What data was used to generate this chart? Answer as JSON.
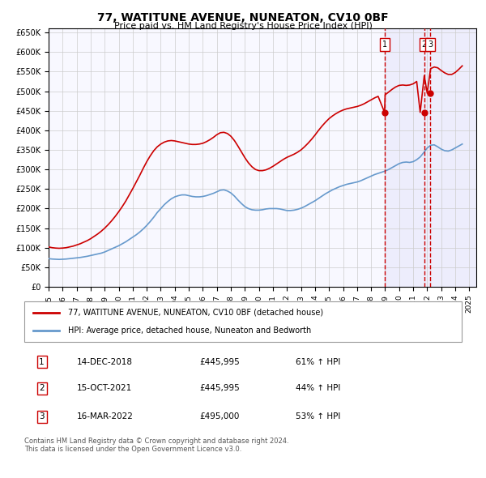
{
  "title": "77, WATITUNE AVENUE, NUNEATON, CV10 0BF",
  "subtitle": "Price paid vs. HM Land Registry's House Price Index (HPI)",
  "ylabel": "",
  "xlim_start": 1995.0,
  "xlim_end": 2025.5,
  "ylim_min": 0,
  "ylim_max": 650000,
  "yticks": [
    0,
    50000,
    100000,
    150000,
    200000,
    250000,
    300000,
    350000,
    400000,
    450000,
    500000,
    550000,
    600000,
    650000
  ],
  "ytick_labels": [
    "£0",
    "£50K",
    "£100K",
    "£150K",
    "£200K",
    "£250K",
    "£300K",
    "£350K",
    "£400K",
    "£450K",
    "£500K",
    "£550K",
    "£600K",
    "£650K"
  ],
  "hpi_color": "#6699cc",
  "price_color": "#cc0000",
  "sale_marker_color": "#cc0000",
  "vline_color": "#cc0000",
  "hatch_color": "#ddddff",
  "background_color": "#ffffff",
  "grid_color": "#cccccc",
  "legend_line1": "77, WATITUNE AVENUE, NUNEATON, CV10 0BF (detached house)",
  "legend_line2": "HPI: Average price, detached house, Nuneaton and Bedworth",
  "sale1_date": "14-DEC-2018",
  "sale1_price": "£445,995",
  "sale1_hpi": "61% ↑ HPI",
  "sale1_year": 2018.96,
  "sale1_value": 445995,
  "sale2_date": "15-OCT-2021",
  "sale2_price": "£445,995",
  "sale2_hpi": "44% ↑ HPI",
  "sale2_year": 2021.79,
  "sale2_value": 445995,
  "sale3_date": "16-MAR-2022",
  "sale3_price": "£495,000",
  "sale3_hpi": "53% ↑ HPI",
  "sale3_year": 2022.21,
  "sale3_value": 495000,
  "footer_text": "Contains HM Land Registry data © Crown copyright and database right 2024.\nThis data is licensed under the Open Government Licence v3.0.",
  "hpi_years": [
    1995.0,
    1995.25,
    1995.5,
    1995.75,
    1996.0,
    1996.25,
    1996.5,
    1996.75,
    1997.0,
    1997.25,
    1997.5,
    1997.75,
    1998.0,
    1998.25,
    1998.5,
    1998.75,
    1999.0,
    1999.25,
    1999.5,
    1999.75,
    2000.0,
    2000.25,
    2000.5,
    2000.75,
    2001.0,
    2001.25,
    2001.5,
    2001.75,
    2002.0,
    2002.25,
    2002.5,
    2002.75,
    2003.0,
    2003.25,
    2003.5,
    2003.75,
    2004.0,
    2004.25,
    2004.5,
    2004.75,
    2005.0,
    2005.25,
    2005.5,
    2005.75,
    2006.0,
    2006.25,
    2006.5,
    2006.75,
    2007.0,
    2007.25,
    2007.5,
    2007.75,
    2008.0,
    2008.25,
    2008.5,
    2008.75,
    2009.0,
    2009.25,
    2009.5,
    2009.75,
    2010.0,
    2010.25,
    2010.5,
    2010.75,
    2011.0,
    2011.25,
    2011.5,
    2011.75,
    2012.0,
    2012.25,
    2012.5,
    2012.75,
    2013.0,
    2013.25,
    2013.5,
    2013.75,
    2014.0,
    2014.25,
    2014.5,
    2014.75,
    2015.0,
    2015.25,
    2015.5,
    2015.75,
    2016.0,
    2016.25,
    2016.5,
    2016.75,
    2017.0,
    2017.25,
    2017.5,
    2017.75,
    2018.0,
    2018.25,
    2018.5,
    2018.75,
    2019.0,
    2019.25,
    2019.5,
    2019.75,
    2020.0,
    2020.25,
    2020.5,
    2020.75,
    2021.0,
    2021.25,
    2021.5,
    2021.75,
    2022.0,
    2022.25,
    2022.5,
    2022.75,
    2023.0,
    2023.25,
    2023.5,
    2023.75,
    2024.0,
    2024.25,
    2024.5
  ],
  "hpi_values": [
    72000,
    71000,
    70500,
    70000,
    70500,
    71000,
    72000,
    73000,
    74000,
    75000,
    76500,
    78000,
    80000,
    82000,
    84000,
    86000,
    89000,
    93000,
    97000,
    101000,
    105000,
    110000,
    115000,
    121000,
    127000,
    133000,
    140000,
    148000,
    157000,
    167000,
    178000,
    190000,
    200000,
    210000,
    218000,
    225000,
    230000,
    233000,
    235000,
    235000,
    233000,
    231000,
    230000,
    230000,
    231000,
    233000,
    236000,
    239000,
    243000,
    247000,
    248000,
    245000,
    240000,
    232000,
    222000,
    213000,
    205000,
    200000,
    197000,
    196000,
    196000,
    197000,
    199000,
    200000,
    200000,
    200000,
    199000,
    197000,
    195000,
    195000,
    196000,
    198000,
    201000,
    205000,
    210000,
    215000,
    220000,
    226000,
    232000,
    238000,
    243000,
    248000,
    252000,
    256000,
    259000,
    262000,
    264000,
    266000,
    268000,
    271000,
    275000,
    279000,
    283000,
    287000,
    290000,
    293000,
    296000,
    300000,
    305000,
    310000,
    315000,
    318000,
    319000,
    318000,
    320000,
    325000,
    332000,
    343000,
    355000,
    362000,
    363000,
    358000,
    352000,
    348000,
    347000,
    350000,
    355000,
    360000,
    365000
  ],
  "price_years": [
    1995.0,
    1995.25,
    1995.5,
    1995.75,
    1996.0,
    1996.25,
    1996.5,
    1996.75,
    1997.0,
    1997.25,
    1997.5,
    1997.75,
    1998.0,
    1998.25,
    1998.5,
    1998.75,
    1999.0,
    1999.25,
    1999.5,
    1999.75,
    2000.0,
    2000.25,
    2000.5,
    2000.75,
    2001.0,
    2001.25,
    2001.5,
    2001.75,
    2002.0,
    2002.25,
    2002.5,
    2002.75,
    2003.0,
    2003.25,
    2003.5,
    2003.75,
    2004.0,
    2004.25,
    2004.5,
    2004.75,
    2005.0,
    2005.25,
    2005.5,
    2005.75,
    2006.0,
    2006.25,
    2006.5,
    2006.75,
    2007.0,
    2007.25,
    2007.5,
    2007.75,
    2008.0,
    2008.25,
    2008.5,
    2008.75,
    2009.0,
    2009.25,
    2009.5,
    2009.75,
    2010.0,
    2010.25,
    2010.5,
    2010.75,
    2011.0,
    2011.25,
    2011.5,
    2011.75,
    2012.0,
    2012.25,
    2012.5,
    2012.75,
    2013.0,
    2013.25,
    2013.5,
    2013.75,
    2014.0,
    2014.25,
    2014.5,
    2014.75,
    2015.0,
    2015.25,
    2015.5,
    2015.75,
    2016.0,
    2016.25,
    2016.5,
    2016.75,
    2017.0,
    2017.25,
    2017.5,
    2017.75,
    2018.0,
    2018.25,
    2018.5,
    2018.96,
    2019.0,
    2019.25,
    2019.5,
    2019.75,
    2020.0,
    2020.25,
    2020.5,
    2020.75,
    2021.0,
    2021.25,
    2021.5,
    2021.79,
    2022.0,
    2022.21,
    2022.25,
    2022.5,
    2022.75,
    2023.0,
    2023.25,
    2023.5,
    2023.75,
    2024.0,
    2024.25,
    2024.5
  ],
  "price_values": [
    102000,
    100000,
    99000,
    98500,
    99000,
    100000,
    102000,
    104000,
    107000,
    110000,
    114000,
    118000,
    123000,
    129000,
    135000,
    142000,
    150000,
    159000,
    169000,
    180000,
    192000,
    205000,
    219000,
    235000,
    251000,
    268000,
    285000,
    303000,
    320000,
    335000,
    348000,
    358000,
    365000,
    370000,
    373000,
    374000,
    373000,
    371000,
    369000,
    367000,
    365000,
    364000,
    364000,
    365000,
    367000,
    371000,
    376000,
    382000,
    389000,
    394000,
    395000,
    392000,
    385000,
    374000,
    360000,
    345000,
    330000,
    317000,
    307000,
    300000,
    297000,
    297000,
    299000,
    303000,
    308000,
    314000,
    320000,
    326000,
    331000,
    335000,
    339000,
    344000,
    350000,
    358000,
    367000,
    377000,
    388000,
    400000,
    411000,
    421000,
    430000,
    437000,
    443000,
    448000,
    452000,
    455000,
    457000,
    459000,
    461000,
    464000,
    468000,
    473000,
    478000,
    483000,
    487000,
    445995,
    491000,
    498000,
    505000,
    511000,
    515000,
    516000,
    515000,
    516000,
    519000,
    525000,
    445995,
    540000,
    495000,
    550000,
    558000,
    562000,
    560000,
    553000,
    547000,
    543000,
    543000,
    548000,
    556000,
    565000
  ]
}
